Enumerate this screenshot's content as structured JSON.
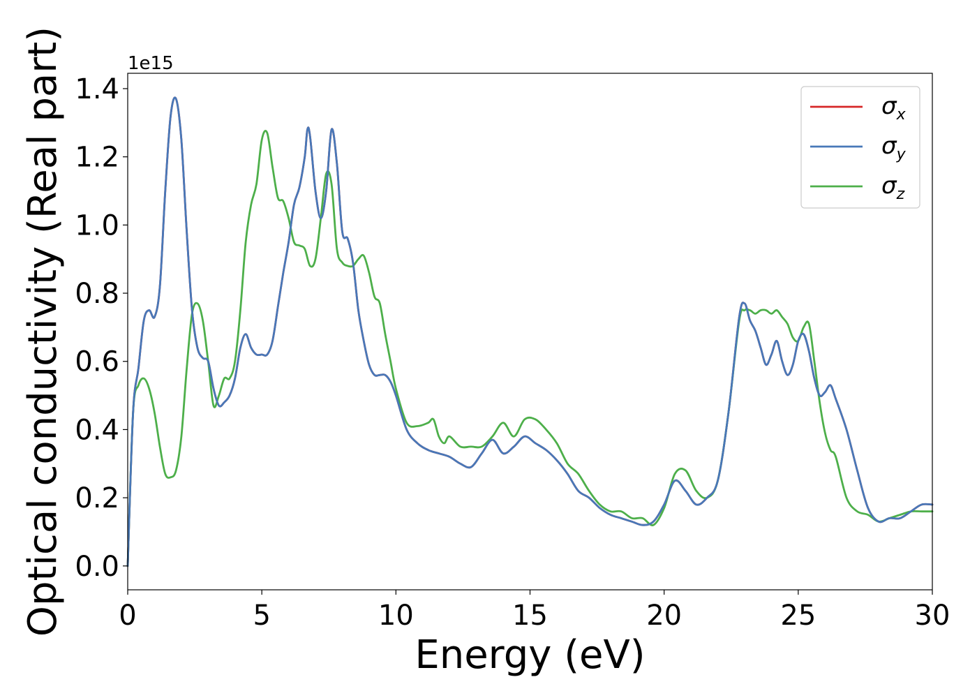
{
  "chart_data": {
    "type": "line",
    "xlabel": "Energy (eV)",
    "ylabel": "Optical conductivity (Real part)",
    "y_offset_label": "1e15",
    "xlim": [
      0,
      30
    ],
    "ylim": [
      -0.07,
      1.445
    ],
    "xticks": [
      0,
      5,
      10,
      15,
      20,
      25,
      30
    ],
    "xtick_labels": [
      "0",
      "5",
      "10",
      "15",
      "20",
      "25",
      "30"
    ],
    "yticks": [
      0.0,
      0.2,
      0.4,
      0.6,
      0.8,
      1.0,
      1.2,
      1.4
    ],
    "ytick_labels": [
      "0.0",
      "0.2",
      "0.4",
      "0.6",
      "0.8",
      "1.0",
      "1.2",
      "1.4"
    ],
    "grid": false,
    "legend_position": "top-right",
    "series": [
      {
        "name": "σ",
        "subscript": "x",
        "color": "#d62728",
        "x": [
          0,
          0.2,
          0.4,
          0.6,
          0.8,
          1.0,
          1.2,
          1.4,
          1.6,
          1.8,
          2.0,
          2.2,
          2.4,
          2.6,
          2.8,
          3.0,
          3.2,
          3.4,
          3.6,
          3.8,
          4.0,
          4.2,
          4.4,
          4.6,
          4.8,
          5.0,
          5.2,
          5.4,
          5.6,
          5.8,
          6.0,
          6.2,
          6.4,
          6.6,
          6.7,
          6.8,
          7.0,
          7.2,
          7.4,
          7.6,
          7.8,
          8.0,
          8.2,
          8.4,
          8.6,
          8.8,
          9.0,
          9.2,
          9.4,
          9.6,
          9.8,
          10.0,
          10.4,
          10.8,
          11.2,
          11.6,
          12.0,
          12.4,
          12.8,
          13.2,
          13.6,
          14.0,
          14.4,
          14.8,
          15.2,
          15.6,
          16.0,
          16.4,
          16.8,
          17.2,
          17.6,
          18.0,
          18.4,
          18.8,
          19.2,
          19.6,
          20.0,
          20.4,
          20.8,
          21.2,
          21.6,
          22.0,
          22.4,
          22.8,
          23.0,
          23.2,
          23.4,
          23.6,
          23.8,
          24.0,
          24.2,
          24.4,
          24.6,
          24.8,
          25.0,
          25.2,
          25.4,
          25.6,
          25.8,
          26.0,
          26.2,
          26.4,
          26.8,
          27.2,
          27.6,
          28.0,
          28.4,
          28.8,
          29.2,
          29.6,
          30.0
        ],
        "y": [
          0.0,
          0.45,
          0.58,
          0.72,
          0.75,
          0.73,
          0.82,
          1.1,
          1.32,
          1.37,
          1.25,
          0.98,
          0.75,
          0.64,
          0.61,
          0.6,
          0.52,
          0.47,
          0.48,
          0.5,
          0.55,
          0.64,
          0.68,
          0.64,
          0.62,
          0.62,
          0.62,
          0.66,
          0.76,
          0.86,
          0.95,
          1.06,
          1.11,
          1.2,
          1.28,
          1.26,
          1.1,
          1.02,
          1.1,
          1.28,
          1.18,
          0.98,
          0.96,
          0.89,
          0.75,
          0.66,
          0.59,
          0.56,
          0.56,
          0.56,
          0.54,
          0.5,
          0.4,
          0.36,
          0.34,
          0.33,
          0.32,
          0.3,
          0.29,
          0.33,
          0.37,
          0.33,
          0.35,
          0.38,
          0.36,
          0.34,
          0.31,
          0.27,
          0.22,
          0.2,
          0.17,
          0.15,
          0.14,
          0.13,
          0.12,
          0.13,
          0.18,
          0.25,
          0.22,
          0.18,
          0.2,
          0.25,
          0.45,
          0.73,
          0.77,
          0.72,
          0.69,
          0.64,
          0.59,
          0.62,
          0.66,
          0.6,
          0.56,
          0.59,
          0.66,
          0.68,
          0.63,
          0.55,
          0.5,
          0.51,
          0.53,
          0.49,
          0.4,
          0.28,
          0.17,
          0.13,
          0.14,
          0.14,
          0.16,
          0.18,
          0.18
        ]
      },
      {
        "name": "σ",
        "subscript": "y",
        "color": "#4878b8",
        "x": [
          0,
          0.2,
          0.4,
          0.6,
          0.8,
          1.0,
          1.2,
          1.4,
          1.6,
          1.8,
          2.0,
          2.2,
          2.4,
          2.6,
          2.8,
          3.0,
          3.2,
          3.4,
          3.6,
          3.8,
          4.0,
          4.2,
          4.4,
          4.6,
          4.8,
          5.0,
          5.2,
          5.4,
          5.6,
          5.8,
          6.0,
          6.2,
          6.4,
          6.6,
          6.7,
          6.8,
          7.0,
          7.2,
          7.4,
          7.6,
          7.8,
          8.0,
          8.2,
          8.4,
          8.6,
          8.8,
          9.0,
          9.2,
          9.4,
          9.6,
          9.8,
          10.0,
          10.4,
          10.8,
          11.2,
          11.6,
          12.0,
          12.4,
          12.8,
          13.2,
          13.6,
          14.0,
          14.4,
          14.8,
          15.2,
          15.6,
          16.0,
          16.4,
          16.8,
          17.2,
          17.6,
          18.0,
          18.4,
          18.8,
          19.2,
          19.6,
          20.0,
          20.4,
          20.8,
          21.2,
          21.6,
          22.0,
          22.4,
          22.8,
          23.0,
          23.2,
          23.4,
          23.6,
          23.8,
          24.0,
          24.2,
          24.4,
          24.6,
          24.8,
          25.0,
          25.2,
          25.4,
          25.6,
          25.8,
          26.0,
          26.2,
          26.4,
          26.8,
          27.2,
          27.6,
          28.0,
          28.4,
          28.8,
          29.2,
          29.6,
          30.0
        ],
        "y": [
          0.0,
          0.45,
          0.58,
          0.72,
          0.75,
          0.73,
          0.82,
          1.1,
          1.32,
          1.37,
          1.25,
          0.98,
          0.75,
          0.64,
          0.61,
          0.6,
          0.52,
          0.47,
          0.48,
          0.5,
          0.55,
          0.64,
          0.68,
          0.64,
          0.62,
          0.62,
          0.62,
          0.66,
          0.76,
          0.86,
          0.95,
          1.06,
          1.11,
          1.2,
          1.28,
          1.26,
          1.1,
          1.02,
          1.1,
          1.28,
          1.18,
          0.98,
          0.96,
          0.89,
          0.75,
          0.66,
          0.59,
          0.56,
          0.56,
          0.56,
          0.54,
          0.5,
          0.4,
          0.36,
          0.34,
          0.33,
          0.32,
          0.3,
          0.29,
          0.33,
          0.37,
          0.33,
          0.35,
          0.38,
          0.36,
          0.34,
          0.31,
          0.27,
          0.22,
          0.2,
          0.17,
          0.15,
          0.14,
          0.13,
          0.12,
          0.13,
          0.18,
          0.25,
          0.22,
          0.18,
          0.2,
          0.25,
          0.45,
          0.73,
          0.77,
          0.72,
          0.69,
          0.64,
          0.59,
          0.62,
          0.66,
          0.6,
          0.56,
          0.59,
          0.66,
          0.68,
          0.63,
          0.55,
          0.5,
          0.51,
          0.53,
          0.49,
          0.4,
          0.28,
          0.17,
          0.13,
          0.14,
          0.14,
          0.16,
          0.18,
          0.18
        ]
      },
      {
        "name": "σ",
        "subscript": "z",
        "color": "#4daf4a",
        "x": [
          0,
          0.2,
          0.4,
          0.6,
          0.8,
          1.0,
          1.2,
          1.4,
          1.6,
          1.8,
          2.0,
          2.2,
          2.4,
          2.6,
          2.8,
          3.0,
          3.2,
          3.4,
          3.6,
          3.8,
          4.0,
          4.2,
          4.4,
          4.6,
          4.8,
          5.0,
          5.2,
          5.4,
          5.6,
          5.8,
          6.0,
          6.2,
          6.4,
          6.6,
          6.8,
          7.0,
          7.2,
          7.4,
          7.6,
          7.8,
          8.0,
          8.2,
          8.4,
          8.6,
          8.8,
          9.0,
          9.2,
          9.4,
          9.6,
          9.8,
          10.0,
          10.4,
          10.8,
          11.2,
          11.4,
          11.6,
          11.8,
          12.0,
          12.4,
          12.8,
          13.2,
          13.6,
          14.0,
          14.4,
          14.8,
          15.2,
          15.6,
          16.0,
          16.4,
          16.8,
          17.2,
          17.6,
          18.0,
          18.4,
          18.8,
          19.2,
          19.6,
          20.0,
          20.4,
          20.8,
          21.2,
          21.6,
          22.0,
          22.4,
          22.8,
          23.0,
          23.2,
          23.4,
          23.6,
          23.8,
          24.0,
          24.2,
          24.4,
          24.6,
          24.8,
          25.0,
          25.2,
          25.4,
          25.6,
          25.8,
          26.0,
          26.2,
          26.4,
          26.8,
          27.2,
          27.6,
          28.0,
          28.4,
          28.8,
          29.2,
          29.6,
          30.0
        ],
        "y": [
          0.0,
          0.45,
          0.53,
          0.55,
          0.52,
          0.45,
          0.35,
          0.27,
          0.26,
          0.28,
          0.38,
          0.58,
          0.74,
          0.77,
          0.72,
          0.6,
          0.47,
          0.5,
          0.55,
          0.55,
          0.6,
          0.75,
          0.95,
          1.06,
          1.12,
          1.25,
          1.27,
          1.17,
          1.08,
          1.07,
          1.02,
          0.95,
          0.94,
          0.93,
          0.88,
          0.9,
          1.02,
          1.15,
          1.12,
          0.93,
          0.89,
          0.88,
          0.88,
          0.9,
          0.91,
          0.86,
          0.79,
          0.77,
          0.68,
          0.6,
          0.52,
          0.42,
          0.41,
          0.42,
          0.43,
          0.38,
          0.36,
          0.38,
          0.35,
          0.35,
          0.35,
          0.38,
          0.42,
          0.38,
          0.43,
          0.43,
          0.4,
          0.36,
          0.3,
          0.27,
          0.22,
          0.18,
          0.16,
          0.16,
          0.14,
          0.14,
          0.12,
          0.17,
          0.27,
          0.28,
          0.22,
          0.2,
          0.25,
          0.45,
          0.72,
          0.75,
          0.75,
          0.74,
          0.75,
          0.75,
          0.74,
          0.75,
          0.73,
          0.71,
          0.67,
          0.66,
          0.7,
          0.71,
          0.6,
          0.48,
          0.39,
          0.34,
          0.32,
          0.2,
          0.16,
          0.15,
          0.13,
          0.14,
          0.15,
          0.16,
          0.16,
          0.16
        ]
      }
    ]
  }
}
